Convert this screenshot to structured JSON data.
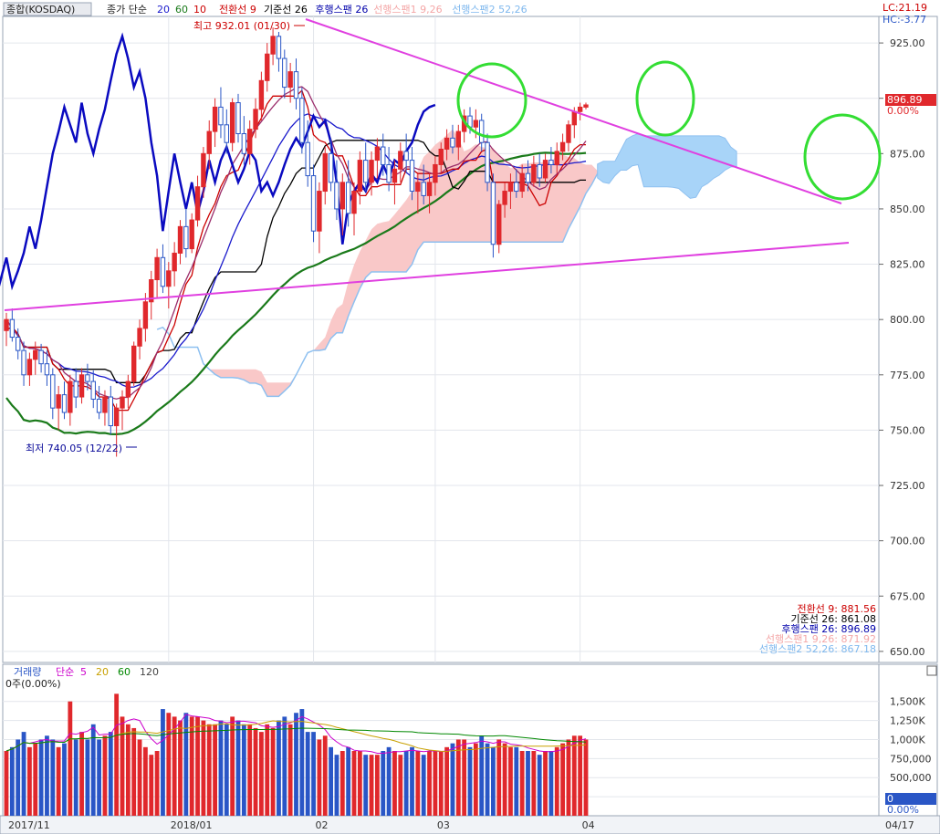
{
  "header": {
    "symbol": "종합(KOSDAQ)",
    "ma_label": "종가 단순",
    "ma_periods": [
      "20",
      "60",
      "10"
    ],
    "ichimoku": [
      {
        "label": "전환선 9",
        "color": "#cc0000"
      },
      {
        "label": "기준선 26",
        "color": "#000000"
      },
      {
        "label": "후행스팬 26",
        "color": "#0000aa"
      },
      {
        "label": "선행스팬1 9,26",
        "color": "#f4a6a6"
      },
      {
        "label": "선행스팬2 52,26",
        "color": "#7fb8ee"
      }
    ]
  },
  "axis_corner": {
    "lc": "LC:21.19",
    "hc": "HC:-3.77"
  },
  "annotations": {
    "high": "최고 932.01 (01/30)",
    "low": "최저 740.05 (12/22)"
  },
  "price_tag": {
    "value": "896.89",
    "pct": "0.00%"
  },
  "legend_values": [
    {
      "text": "전환선 9: 881.56",
      "color": "#cc0000"
    },
    {
      "text": "기준선 26: 861.08",
      "color": "#000000"
    },
    {
      "text": "후행스팬 26: 896.89",
      "color": "#0000aa"
    },
    {
      "text": "선행스팬1 9,26: 871.92",
      "color": "#f4a6a6"
    },
    {
      "text": "선행스팬2 52,26: 867.18",
      "color": "#7fb8ee"
    }
  ],
  "volume_panel": {
    "title": "거래량",
    "ma_label": "단순",
    "ma_periods": [
      {
        "text": "5",
        "color": "#cc00cc"
      },
      {
        "text": "20",
        "color": "#c8a000"
      },
      {
        "text": "60",
        "color": "#008800"
      },
      {
        "text": "120",
        "color": "#444444"
      }
    ],
    "status": "0주(0.00%)",
    "tag_value": "0",
    "tag_pct": "0.00%"
  },
  "colors": {
    "up": "#e0282c",
    "down": "#2a56c6",
    "ma20": "#9b2d6b",
    "ma60": "#1a7a1a",
    "ma10": "#cc0000",
    "trend": "#e040e0",
    "cloud_up": "#f9c8c8",
    "cloud_edge": "#8ec0f0",
    "highlight": "#33dd33"
  },
  "chart_data": {
    "type": "candlestick",
    "period": "daily",
    "y_ticks": [
      "925.00",
      "900.00",
      "875.00",
      "850.00",
      "825.00",
      "800.00",
      "775.00",
      "750.00",
      "725.00",
      "700.00",
      "675.00",
      "650.00"
    ],
    "ylim": [
      645,
      937
    ],
    "volume_ticks": [
      "1,500K",
      "1,250K",
      "1,000K",
      "750,000",
      "500,000",
      "250,000"
    ],
    "volume_ylim": [
      0,
      1700
    ],
    "volume_unit": "K",
    "x_labels": [
      {
        "text": "2017/11",
        "index": 0
      },
      {
        "text": "2018/01",
        "index": 28
      },
      {
        "text": "02",
        "index": 53
      },
      {
        "text": "03",
        "index": 74
      },
      {
        "text": "04",
        "index": 99
      },
      {
        "text": "04/17",
        "index": 146
      }
    ],
    "candles": [
      [
        795,
        803,
        788,
        800
      ],
      [
        800,
        805,
        790,
        792
      ],
      [
        792,
        796,
        782,
        786
      ],
      [
        786,
        790,
        770,
        775
      ],
      [
        775,
        785,
        770,
        782
      ],
      [
        782,
        790,
        775,
        786
      ],
      [
        786,
        789,
        776,
        780
      ],
      [
        780,
        786,
        770,
        775
      ],
      [
        775,
        778,
        755,
        760
      ],
      [
        760,
        770,
        750,
        766
      ],
      [
        766,
        772,
        755,
        758
      ],
      [
        758,
        775,
        752,
        772
      ],
      [
        772,
        778,
        760,
        765
      ],
      [
        765,
        778,
        762,
        775
      ],
      [
        775,
        780,
        768,
        772
      ],
      [
        772,
        777,
        760,
        764
      ],
      [
        764,
        770,
        755,
        758
      ],
      [
        758,
        768,
        752,
        765
      ],
      [
        765,
        770,
        748,
        752
      ],
      [
        752,
        762,
        738,
        760
      ],
      [
        760,
        768,
        750,
        765
      ],
      [
        765,
        775,
        760,
        772
      ],
      [
        772,
        790,
        770,
        788
      ],
      [
        788,
        800,
        782,
        796
      ],
      [
        796,
        812,
        790,
        808
      ],
      [
        808,
        822,
        800,
        818
      ],
      [
        818,
        832,
        810,
        828
      ],
      [
        828,
        834,
        812,
        815
      ],
      [
        815,
        826,
        805,
        822
      ],
      [
        822,
        835,
        815,
        830
      ],
      [
        830,
        845,
        825,
        842
      ],
      [
        842,
        850,
        828,
        832
      ],
      [
        832,
        848,
        830,
        845
      ],
      [
        845,
        865,
        842,
        860
      ],
      [
        860,
        878,
        855,
        875
      ],
      [
        875,
        890,
        868,
        885
      ],
      [
        885,
        900,
        878,
        896
      ],
      [
        896,
        905,
        882,
        888
      ],
      [
        888,
        895,
        875,
        880
      ],
      [
        880,
        900,
        876,
        898
      ],
      [
        898,
        902,
        880,
        884
      ],
      [
        884,
        892,
        870,
        875
      ],
      [
        875,
        890,
        870,
        886
      ],
      [
        886,
        900,
        882,
        895
      ],
      [
        895,
        912,
        890,
        908
      ],
      [
        908,
        925,
        903,
        920
      ],
      [
        920,
        932,
        915,
        928
      ],
      [
        928,
        930,
        912,
        918
      ],
      [
        918,
        922,
        900,
        905
      ],
      [
        905,
        916,
        898,
        912
      ],
      [
        912,
        918,
        895,
        900
      ],
      [
        900,
        905,
        875,
        880
      ],
      [
        880,
        890,
        860,
        865
      ],
      [
        865,
        870,
        835,
        840
      ],
      [
        840,
        862,
        830,
        858
      ],
      [
        858,
        878,
        852,
        875
      ],
      [
        875,
        882,
        858,
        862
      ],
      [
        862,
        872,
        845,
        850
      ],
      [
        850,
        866,
        838,
        862
      ],
      [
        862,
        872,
        842,
        848
      ],
      [
        848,
        862,
        838,
        858
      ],
      [
        858,
        876,
        852,
        872
      ],
      [
        872,
        880,
        858,
        862
      ],
      [
        862,
        876,
        856,
        872
      ],
      [
        872,
        882,
        864,
        878
      ],
      [
        878,
        884,
        865,
        870
      ],
      [
        870,
        878,
        858,
        862
      ],
      [
        862,
        872,
        852,
        868
      ],
      [
        868,
        880,
        862,
        876
      ],
      [
        876,
        884,
        866,
        872
      ],
      [
        872,
        878,
        854,
        858
      ],
      [
        858,
        866,
        848,
        862
      ],
      [
        862,
        870,
        852,
        856
      ],
      [
        856,
        866,
        848,
        862
      ],
      [
        862,
        874,
        856,
        870
      ],
      [
        870,
        880,
        866,
        877
      ],
      [
        877,
        886,
        872,
        882
      ],
      [
        882,
        888,
        875,
        878
      ],
      [
        878,
        888,
        872,
        885
      ],
      [
        885,
        895,
        880,
        892
      ],
      [
        892,
        896,
        884,
        887
      ],
      [
        887,
        895,
        882,
        890
      ],
      [
        890,
        893,
        876,
        880
      ],
      [
        880,
        884,
        858,
        862
      ],
      [
        862,
        866,
        828,
        834
      ],
      [
        834,
        854,
        830,
        852
      ],
      [
        852,
        862,
        846,
        858
      ],
      [
        858,
        866,
        850,
        862
      ],
      [
        862,
        868,
        855,
        858
      ],
      [
        858,
        870,
        855,
        866
      ],
      [
        866,
        872,
        858,
        862
      ],
      [
        862,
        874,
        860,
        870
      ],
      [
        870,
        875,
        860,
        864
      ],
      [
        864,
        875,
        862,
        872
      ],
      [
        872,
        878,
        866,
        870
      ],
      [
        870,
        880,
        866,
        876
      ],
      [
        876,
        884,
        872,
        880
      ],
      [
        880,
        890,
        876,
        888
      ],
      [
        888,
        896,
        882,
        894
      ],
      [
        894,
        898,
        890,
        896
      ],
      [
        896,
        898,
        895,
        897
      ]
    ],
    "volume": [
      850,
      900,
      1000,
      1100,
      900,
      950,
      1000,
      1050,
      1000,
      900,
      950,
      1500,
      1000,
      1100,
      1000,
      1200,
      1000,
      1050,
      1100,
      1600,
      1300,
      1200,
      1150,
      1000,
      900,
      800,
      850,
      1400,
      1350,
      1300,
      1250,
      1350,
      1300,
      1300,
      1250,
      1200,
      1200,
      1250,
      1200,
      1300,
      1250,
      1200,
      1200,
      1150,
      1100,
      1200,
      1150,
      1250,
      1300,
      1200,
      1350,
      1400,
      1100,
      1100,
      1000,
      1050,
      900,
      800,
      850,
      900,
      850,
      850,
      800,
      800,
      800,
      850,
      900,
      850,
      800,
      850,
      900,
      850,
      800,
      850,
      850,
      850,
      900,
      950,
      1000,
      1000,
      900,
      950,
      1050,
      950,
      900,
      1000,
      950,
      900,
      900,
      850,
      850,
      850,
      800,
      850,
      850,
      900,
      950,
      1000,
      1050,
      1050,
      1000
    ],
    "ylabel": "",
    "xlabel": ""
  }
}
